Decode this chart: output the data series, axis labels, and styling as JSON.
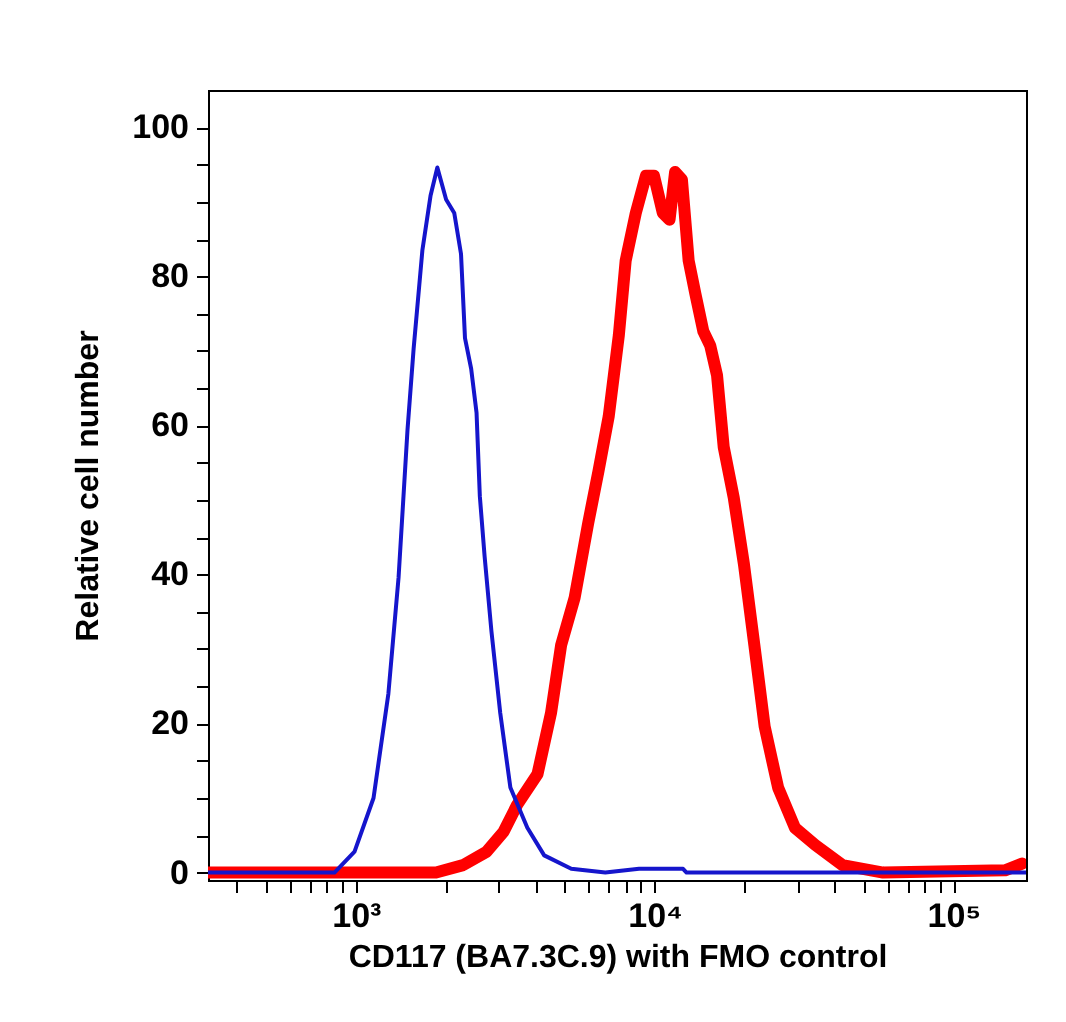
{
  "chart_data": {
    "type": "line",
    "xlabel": "CD117 (BA7.3C.9) with FMO control",
    "ylabel": "Relative cell number",
    "log": "x",
    "grid": false,
    "xlim": [
      320,
      175000
    ],
    "ylim": [
      -1,
      105
    ],
    "xticks": [
      {
        "value": 400,
        "label": null
      },
      {
        "value": 500,
        "label": null
      },
      {
        "value": 600,
        "label": null
      },
      {
        "value": 700,
        "label": null
      },
      {
        "value": 800,
        "label": null
      },
      {
        "value": 900,
        "label": null
      },
      {
        "value": 1000,
        "label": "10³"
      },
      {
        "value": 2000,
        "label": null
      },
      {
        "value": 3000,
        "label": null
      },
      {
        "value": 4000,
        "label": null
      },
      {
        "value": 5000,
        "label": null
      },
      {
        "value": 6000,
        "label": null
      },
      {
        "value": 7000,
        "label": null
      },
      {
        "value": 8000,
        "label": null
      },
      {
        "value": 9000,
        "label": null
      },
      {
        "value": 10000,
        "label": "10⁴"
      },
      {
        "value": 20000,
        "label": null
      },
      {
        "value": 30000,
        "label": null
      },
      {
        "value": 40000,
        "label": null
      },
      {
        "value": 50000,
        "label": null
      },
      {
        "value": 60000,
        "label": null
      },
      {
        "value": 70000,
        "label": null
      },
      {
        "value": 80000,
        "label": null
      },
      {
        "value": 90000,
        "label": null
      },
      {
        "value": 100000,
        "label": "10⁵"
      }
    ],
    "yticks": [
      0,
      {
        "value": 5,
        "label": null
      },
      {
        "value": 10,
        "label": null
      },
      {
        "value": 15,
        "label": null
      },
      20,
      {
        "value": 25,
        "label": null
      },
      {
        "value": 30,
        "label": null
      },
      {
        "value": 35,
        "label": null
      },
      40,
      {
        "value": 45,
        "label": null
      },
      {
        "value": 50,
        "label": null
      },
      {
        "value": 55,
        "label": null
      },
      60,
      {
        "value": 65,
        "label": null
      },
      {
        "value": 70,
        "label": null
      },
      {
        "value": 75,
        "label": null
      },
      80,
      {
        "value": 85,
        "label": null
      },
      {
        "value": 90,
        "label": null
      },
      {
        "value": 95,
        "label": null
      },
      100
    ],
    "series": [
      {
        "color": "#ff0000",
        "x": [
          320,
          1855,
          2285,
          2740,
          3125,
          3467,
          4055,
          4500,
          4865,
          5400,
          5995,
          6490,
          7020,
          7590,
          8000,
          8650,
          9350,
          9950,
          10650,
          11220,
          11710,
          12340,
          13000,
          13700,
          14560,
          15350,
          16180,
          17030,
          18400,
          19900,
          21570,
          23350,
          25900,
          29500,
          34500,
          42550,
          49750,
          58200,
          148900,
          169800
        ],
        "values": [
          0,
          0,
          1,
          2.8,
          5.5,
          9.1,
          13.2,
          21.4,
          30.5,
          36.9,
          46.9,
          53.9,
          61.2,
          72.1,
          82.1,
          88.5,
          93.5,
          93.5,
          88.5,
          87.6,
          94,
          93,
          82.1,
          77.6,
          72.6,
          70.7,
          66.7,
          57.1,
          50.3,
          41.4,
          30.5,
          19.6,
          11.4,
          6,
          3.7,
          1,
          0.5,
          0,
          0.3,
          1.2
        ]
      },
      {
        "color": "#1515cc",
        "x": [
          320,
          848,
          990,
          1146,
          1285,
          1390,
          1489,
          1561,
          1670,
          1778,
          1874,
          2005,
          2135,
          2249,
          2319,
          2432,
          2535,
          2600,
          2698,
          2843,
          3043,
          3290,
          3750,
          4270,
          5260,
          6840,
          8870,
          12450,
          12790,
          175000
        ],
        "values": [
          0,
          0,
          2.8,
          10,
          24,
          39.6,
          59.4,
          70.3,
          83.5,
          90.8,
          94.6,
          90.3,
          88.5,
          83,
          71.7,
          67.6,
          61.7,
          50.5,
          42.4,
          32.4,
          21.4,
          11.4,
          6,
          2.3,
          0.5,
          0,
          0.5,
          0.5,
          0,
          0
        ]
      }
    ]
  }
}
